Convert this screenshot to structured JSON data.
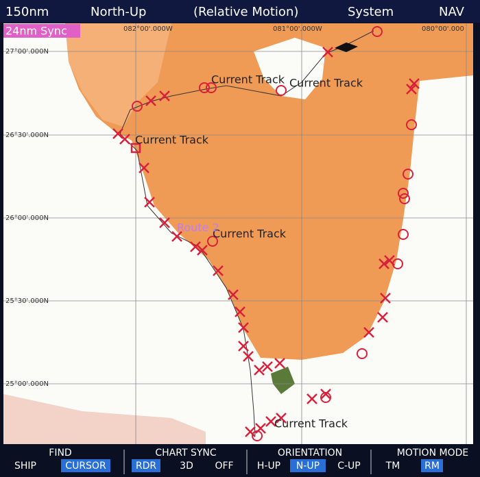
{
  "header": {
    "range": "150nm",
    "orientation": "North-Up",
    "motion": "(Relative Motion)",
    "menu": "System",
    "nav": "NAV"
  },
  "sync_label": "24nm Sync",
  "longitude_labels": [
    "082°00'.000W",
    "081°00'.000W",
    "080°00'.000"
  ],
  "latitude_labels": [
    "27°00'.000N",
    "26°30'.000N",
    "26°00'.000N",
    "25°30'.000N",
    "25°00'.000N"
  ],
  "map_labels": [
    "Current Track",
    "Current Track",
    "Current Track",
    "Current Track",
    "Current Track",
    "Route 2"
  ],
  "toolbar": [
    {
      "title": "FIND",
      "options": [
        {
          "label": "SHIP",
          "highlighted": false
        },
        {
          "label": "CURSOR",
          "highlighted": true
        }
      ]
    },
    {
      "title": "CHART SYNC",
      "options": [
        {
          "label": "RDR",
          "highlighted": true
        },
        {
          "label": "3D",
          "highlighted": false
        },
        {
          "label": "OFF",
          "highlighted": false
        }
      ]
    },
    {
      "title": "ORIENTATION",
      "options": [
        {
          "label": "H-UP",
          "highlighted": false
        },
        {
          "label": "N-UP",
          "highlighted": true
        },
        {
          "label": "C-UP",
          "highlighted": false
        }
      ]
    },
    {
      "title": "MOTION MODE",
      "options": [
        {
          "label": "TM",
          "highlighted": false
        },
        {
          "label": "RM",
          "highlighted": true
        }
      ]
    }
  ]
}
